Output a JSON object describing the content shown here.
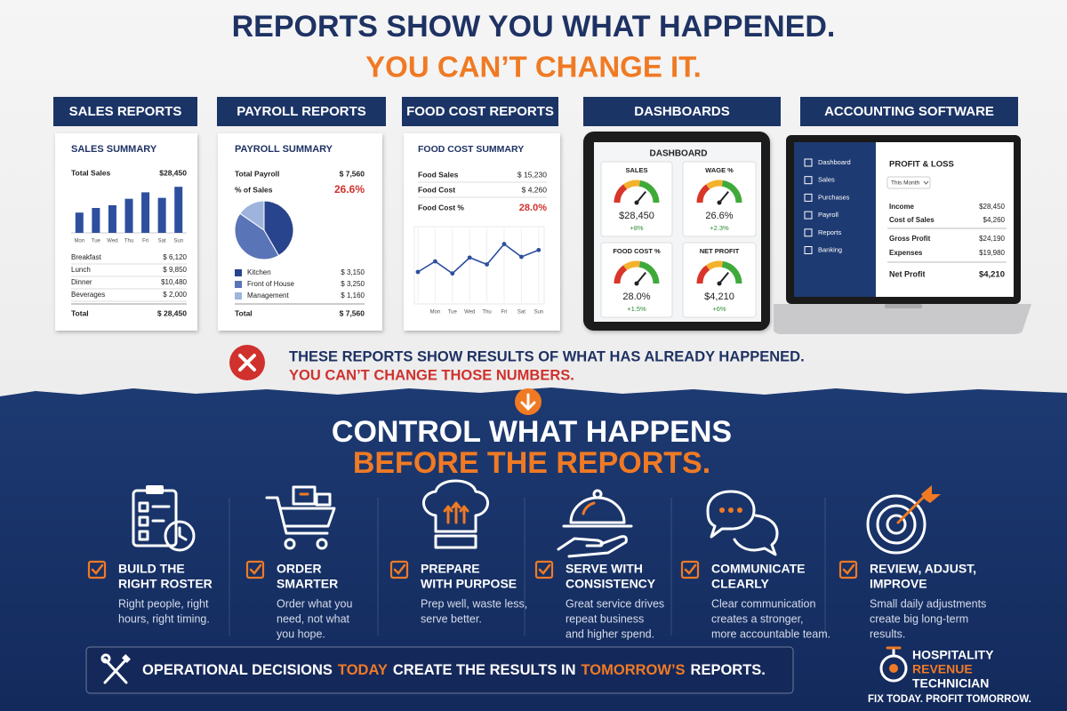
{
  "header": {
    "line1": "REPORTS SHOW YOU WHAT HAPPENED.",
    "line2": "YOU CAN’T CHANGE IT."
  },
  "sales_report": {
    "tab": "SALES REPORTS",
    "title": "SALES SUMMARY",
    "total": {
      "label": "Total Sales",
      "value": "$28,450"
    },
    "chart": {
      "type": "bar",
      "categories": [
        "Mon",
        "Tue",
        "Wed",
        "Thu",
        "Fri",
        "Sat",
        "Sun"
      ],
      "values": [
        22,
        27,
        30,
        37,
        44,
        38,
        50
      ],
      "ylim": [
        0,
        55
      ],
      "color": "#2d4f9e"
    },
    "rows": [
      {
        "label": "Breakfast",
        "value": "$ 6,120"
      },
      {
        "label": "Lunch",
        "value": "$ 9,850"
      },
      {
        "label": "Dinner",
        "value": "$10,480"
      },
      {
        "label": "Beverages",
        "value": "$ 2,000"
      }
    ],
    "footer": {
      "label": "Total",
      "value": "$ 28,450"
    }
  },
  "payroll_report": {
    "tab": "PAYROLL REPORTS",
    "title": "PAYROLL SUMMARY",
    "total": {
      "label": "Total Payroll",
      "value": "$ 7,560"
    },
    "percent": {
      "label": "% of Sales",
      "value": "26.6%"
    },
    "chart": {
      "type": "pie",
      "categories": [
        "Kitchen",
        "Front of House",
        "Management"
      ],
      "values": [
        3150,
        3250,
        1160
      ],
      "value_labels": [
        "$ 3,150",
        "$ 3,250",
        "$ 1,160"
      ],
      "colors": [
        "#28448c",
        "#5a74b8",
        "#9fb4dd"
      ]
    },
    "footer": {
      "label": "Total",
      "value": "$ 7,560"
    }
  },
  "food_cost_report": {
    "tab": "FOOD COST REPORTS",
    "title": "FOOD COST SUMMARY",
    "rows": [
      {
        "label": "Food Sales",
        "value": "$ 15,230"
      },
      {
        "label": "Food Cost",
        "value": "$ 4,260"
      }
    ],
    "percent": {
      "label": "Food Cost %",
      "value": "28.0%"
    },
    "chart": {
      "type": "line",
      "categories": [
        null,
        "Mon",
        "Tue",
        "Wed",
        "Thu",
        "Fri",
        "Sat",
        "Sun"
      ],
      "values": [
        40,
        54,
        38,
        59,
        50,
        77,
        60,
        69
      ],
      "ylim": [
        0,
        100
      ],
      "color": "#2d4f9e"
    }
  },
  "dashboard": {
    "tab": "DASHBOARDS",
    "title": "DASHBOARD",
    "gauges": [
      {
        "label": "SALES",
        "value": "$28,450",
        "change": "+8%"
      },
      {
        "label": "WAGE %",
        "value": "26.6%",
        "change": "+2.3%"
      },
      {
        "label": "FOOD COST %",
        "value": "28.0%",
        "change": "+1.5%"
      },
      {
        "label": "NET PROFIT",
        "value": "$4,210",
        "change": "+6%"
      }
    ]
  },
  "accounting": {
    "tab": "ACCOUNTING SOFTWARE",
    "menu": [
      "Dashboard",
      "Sales",
      "Purchases",
      "Payroll",
      "Reports",
      "Banking"
    ],
    "title": "PROFIT & LOSS",
    "period": "This Month",
    "rows": [
      {
        "label": "Income",
        "value": "$28,450"
      },
      {
        "label": "Cost of Sales",
        "value": "$4,260"
      },
      {
        "label": "Gross Profit",
        "value": "$24,190"
      },
      {
        "label": "Expenses",
        "value": "$19,980"
      },
      {
        "label": "Net Profit",
        "value": "$4,210"
      }
    ]
  },
  "warning": {
    "line1": "THESE REPORTS SHOW RESULTS OF WHAT HAS ALREADY HAPPENED.",
    "line2": "YOU CAN’T CHANGE THOSE NUMBERS."
  },
  "cta": {
    "line1": "CONTROL WHAT HAPPENS",
    "line2": "BEFORE THE REPORTS."
  },
  "actions": [
    {
      "title": [
        "BUILD THE",
        "RIGHT ROSTER"
      ],
      "description": [
        "Right people, right",
        "hours, right timing."
      ]
    },
    {
      "title": [
        "ORDER",
        "SMARTER"
      ],
      "description": [
        "Order what you",
        "need, not what",
        "you hope."
      ]
    },
    {
      "title": [
        "PREPARE",
        "WITH PURPOSE"
      ],
      "description": [
        "Prep well, waste less,",
        "serve better."
      ]
    },
    {
      "title": [
        "SERVE WITH",
        "CONSISTENCY"
      ],
      "description": [
        "Great service drives",
        "repeat business",
        "and higher spend."
      ]
    },
    {
      "title": [
        "COMMUNICATE",
        "CLEARLY"
      ],
      "description": [
        "Clear communication",
        "creates a stronger,",
        "more accountable team."
      ]
    },
    {
      "title": [
        "REVIEW, ADJUST,",
        "IMPROVE"
      ],
      "description": [
        "Small daily adjustments",
        "create big long-term",
        "results."
      ]
    }
  ],
  "banner": {
    "parts": [
      "OPERATIONAL DECISIONS",
      "TODAY",
      "CREATE THE RESULTS IN",
      "TOMORROW’S",
      "REPORTS."
    ]
  },
  "brand": {
    "name": [
      "HOSPITALITY",
      "REVENUE",
      "TECHNICIAN"
    ],
    "tagline": "FIX TODAY. PROFIT TOMORROW."
  }
}
